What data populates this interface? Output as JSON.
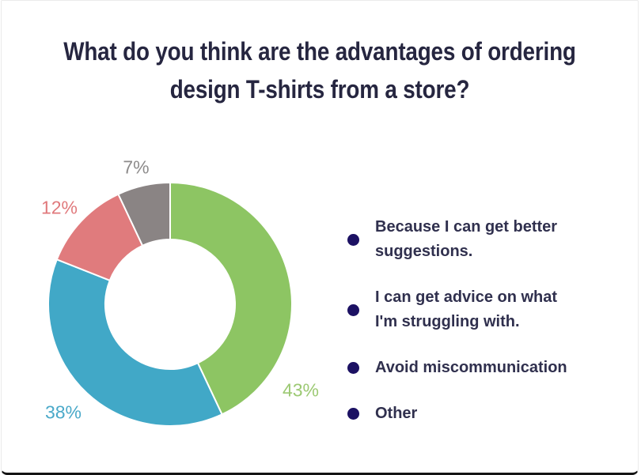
{
  "card": {
    "title_line1": "What do you think are the advantages of ordering",
    "title_line2": "design T-shirts from a store?"
  },
  "colors": {
    "card_background": "#ffffff",
    "card_border": "#ebebeb",
    "card_bottom_edge": "#141414",
    "title_text": "#262640",
    "legend_text": "#30304e",
    "legend_bullet": "#1c1163"
  },
  "chart_data": {
    "type": "pie",
    "subtype": "donut",
    "title": "What do you think are the advantages of ordering design T-shirts from a store?",
    "values_unit": "percent",
    "start_angle_deg": 0,
    "direction": "clockwise",
    "inner_radius_ratio": 0.53,
    "legend_position": "right",
    "slice_separator_color": "#ffffff",
    "slices": [
      {
        "label": "Because I can get better suggestions.",
        "value": 43,
        "percent_label": "43%",
        "color": "#8dc563",
        "percent_label_color": "#9cc973"
      },
      {
        "label": "I can get advice on what I'm struggling with.",
        "value": 38,
        "percent_label": "38%",
        "color": "#41a8c7",
        "percent_label_color": "#4aa9c9"
      },
      {
        "label": "Avoid miscommunication",
        "value": 12,
        "percent_label": "12%",
        "color": "#e07b7d",
        "percent_label_color": "#e0797c"
      },
      {
        "label": "Other",
        "value": 7,
        "percent_label": "7%",
        "color": "#8a8484",
        "percent_label_color": "#8d8b8b"
      }
    ]
  }
}
